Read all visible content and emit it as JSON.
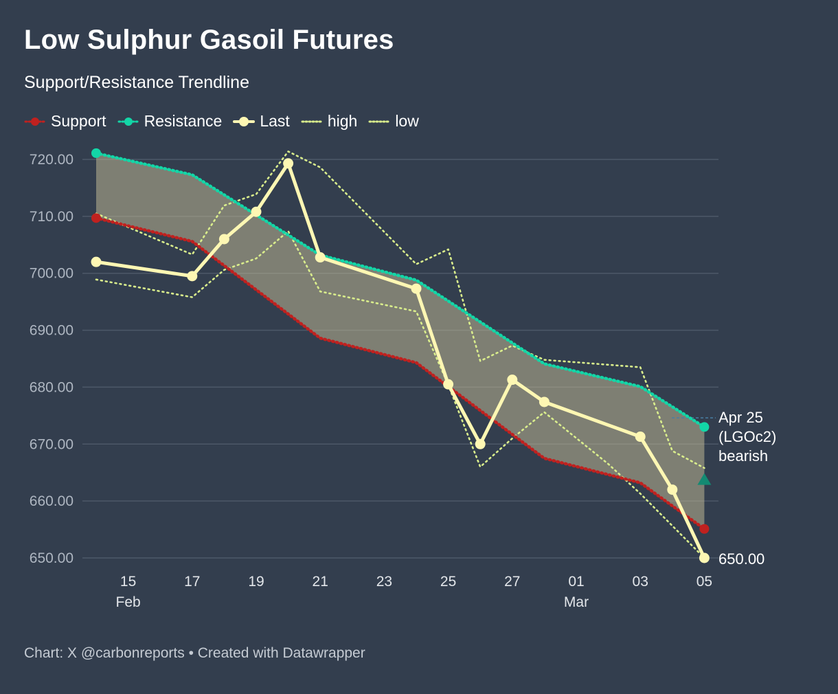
{
  "header": {
    "title": "Low Sulphur Gasoil Futures",
    "subtitle": "Support/Resistance Trendline"
  },
  "legend": [
    {
      "label": "Support",
      "color": "#c0211f",
      "style": "dotted-dot"
    },
    {
      "label": "Resistance",
      "color": "#13d6a7",
      "style": "dotted-dot"
    },
    {
      "label": "Last",
      "color": "#fef7b3",
      "style": "solid-dot"
    },
    {
      "label": "high",
      "color": "#d9ed8c",
      "style": "dotted"
    },
    {
      "label": "low",
      "color": "#d9ed8c",
      "style": "dotted"
    }
  ],
  "footer": "Chart: X @carbonreports • Created with Datawrapper",
  "chart_data": {
    "type": "line",
    "title": "Low Sulphur Gasoil Futures",
    "subtitle": "Support/Resistance Trendline",
    "x_unit": "day offset from 14 Feb",
    "ylim": [
      650,
      720
    ],
    "yticks": [
      720,
      710,
      700,
      690,
      680,
      670,
      660,
      650
    ],
    "ytick_labels": [
      "720.00",
      "710.00",
      "700.00",
      "690.00",
      "680.00",
      "670.00",
      "660.00",
      "650.00"
    ],
    "xticks": [
      {
        "x": 1,
        "label": "15",
        "sublabel": "Feb"
      },
      {
        "x": 3,
        "label": "17",
        "sublabel": ""
      },
      {
        "x": 5,
        "label": "19",
        "sublabel": ""
      },
      {
        "x": 7,
        "label": "21",
        "sublabel": ""
      },
      {
        "x": 9,
        "label": "23",
        "sublabel": ""
      },
      {
        "x": 11,
        "label": "25",
        "sublabel": ""
      },
      {
        "x": 13,
        "label": "27",
        "sublabel": ""
      },
      {
        "x": 15,
        "label": "01",
        "sublabel": "Mar"
      },
      {
        "x": 17,
        "label": "03",
        "sublabel": ""
      },
      {
        "x": 19,
        "label": "05",
        "sublabel": ""
      }
    ],
    "series": [
      {
        "name": "high",
        "color": "#d9ed8c",
        "dash": "dotted",
        "points": [
          [
            0,
            710.5
          ],
          [
            3,
            703.3
          ],
          [
            4,
            711.9
          ],
          [
            5,
            713.9
          ],
          [
            6,
            721.4
          ],
          [
            7,
            718.6
          ],
          [
            10,
            701.6
          ],
          [
            11,
            704.2
          ],
          [
            12,
            684.6
          ],
          [
            13,
            687.3
          ],
          [
            14,
            684.8
          ],
          [
            17,
            683.5
          ],
          [
            18,
            668.8
          ],
          [
            19,
            665.8
          ]
        ]
      },
      {
        "name": "low",
        "color": "#d9ed8c",
        "dash": "dotted",
        "points": [
          [
            0,
            698.9
          ],
          [
            3,
            695.8
          ],
          [
            4,
            700.6
          ],
          [
            5,
            702.6
          ],
          [
            6,
            707.4
          ],
          [
            7,
            696.8
          ],
          [
            10,
            693.3
          ],
          [
            11,
            680.4
          ],
          [
            12,
            666.0
          ],
          [
            13,
            671.0
          ],
          [
            14,
            675.6
          ],
          [
            16,
            666.5
          ],
          [
            17,
            661.3
          ],
          [
            19,
            650.0
          ]
        ]
      },
      {
        "name": "Support",
        "color": "#c0211f",
        "dash": "dotted",
        "points": [
          [
            0,
            709.7
          ],
          [
            3,
            705.6
          ],
          [
            7,
            688.6
          ],
          [
            10,
            684.3
          ],
          [
            14,
            667.5
          ],
          [
            17,
            663.2
          ],
          [
            19,
            655.1
          ]
        ]
      },
      {
        "name": "Resistance",
        "color": "#13d6a7",
        "dash": "dotted",
        "points": [
          [
            0,
            721.1
          ],
          [
            3,
            717.3
          ],
          [
            7,
            703.2
          ],
          [
            10,
            698.8
          ],
          [
            14,
            684.1
          ],
          [
            17,
            680.1
          ],
          [
            19,
            673.0
          ]
        ]
      },
      {
        "name": "Last",
        "color": "#fef7b3",
        "dash": "solid",
        "points": [
          [
            0,
            702.0
          ],
          [
            3,
            699.5
          ],
          [
            4,
            706.0
          ],
          [
            5,
            710.8
          ],
          [
            6,
            719.3
          ],
          [
            7,
            702.8
          ],
          [
            10,
            697.3
          ],
          [
            11,
            680.5
          ],
          [
            12,
            670.0
          ],
          [
            13,
            681.3
          ],
          [
            14,
            677.4
          ],
          [
            17,
            671.3
          ],
          [
            18,
            662.0
          ],
          [
            19,
            650.0
          ]
        ]
      }
    ],
    "band": {
      "between": [
        "Support",
        "Resistance"
      ],
      "fill": "#c9bf97",
      "opacity": 0.5
    },
    "reference_line": {
      "y": 674.6,
      "color": "#4a7ea3"
    },
    "marker": {
      "x": 19,
      "y": 663.8,
      "shape": "triangle-up",
      "color": "#138a72"
    },
    "annotations": {
      "contract": [
        "Apr 25",
        "(LGOc2)",
        "bearish"
      ],
      "last_value": "650.00"
    }
  }
}
